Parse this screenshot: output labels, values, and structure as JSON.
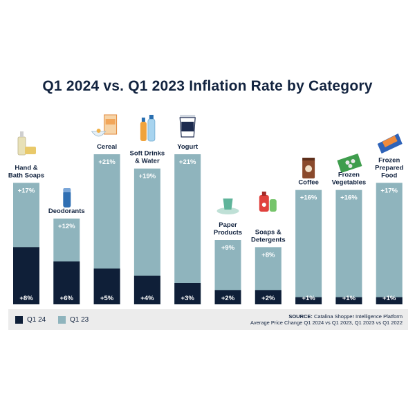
{
  "title": "Q1 2024 vs. Q1 2023 Inflation Rate by Category",
  "chart_data": {
    "type": "bar",
    "title": "Q1 2024 vs. Q1 2023 Inflation Rate by Category",
    "categories": [
      [
        "Hand &",
        "Bath Soaps"
      ],
      [
        "Deodorants"
      ],
      [
        "Cereal"
      ],
      [
        "Soft Drinks",
        "& Water"
      ],
      [
        "Yogurt"
      ],
      [
        "Paper",
        "Products"
      ],
      [
        "Soaps &",
        "Detergents"
      ],
      [
        "Coffee"
      ],
      [
        "Frozen",
        "Vegetables"
      ],
      [
        "Frozen",
        "Prepared",
        "Food"
      ]
    ],
    "series": [
      {
        "name": "Q1 24",
        "color": "#0f1f38",
        "values": [
          8,
          6,
          5,
          4,
          3,
          2,
          2,
          1,
          1,
          1
        ],
        "labels": [
          "+8%",
          "+6%",
          "+5%",
          "+4%",
          "+3%",
          "+2%",
          "+2%",
          "+1%",
          "+1%",
          "+1%"
        ]
      },
      {
        "name": "Q1 23",
        "color": "#8fb4bd",
        "values": [
          17,
          12,
          21,
          19,
          21,
          9,
          8,
          16,
          16,
          17
        ],
        "labels": [
          "+17%",
          "+12%",
          "+21%",
          "+19%",
          "+21%",
          "+9%",
          "+8%",
          "+16%",
          "+16%",
          "+17%"
        ]
      }
    ],
    "ylim": [
      0,
      21
    ],
    "xlabel": "",
    "ylabel": ""
  },
  "legend": {
    "q1_24": "Q1 24",
    "q1_23": "Q1 23"
  },
  "source": {
    "label": "SOURCE:",
    "text": "Catalina Shopper Intelligence Platform",
    "line2": "Average Price Change Q1 2024 vs Q1 2023, Q1 2023 vs Q1 2022"
  },
  "colors": {
    "q1_24": "#0f1f38",
    "q1_23": "#8fb4bd",
    "title": "#12233f"
  }
}
